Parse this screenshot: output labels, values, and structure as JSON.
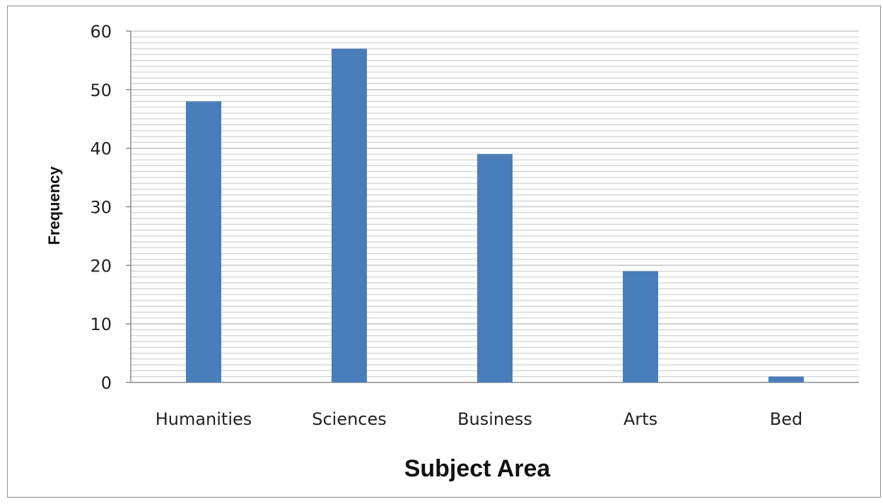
{
  "chart_data": {
    "type": "bar",
    "title": "",
    "xlabel": "Subject Area",
    "ylabel": "Frequency",
    "categories": [
      "Humanities",
      "Sciences",
      "Business",
      "Arts",
      "Bed"
    ],
    "values": [
      48,
      57,
      39,
      19,
      1
    ],
    "ylim": [
      0,
      60
    ],
    "yticks": [
      0,
      10,
      20,
      30,
      40,
      50,
      60
    ],
    "grid": true,
    "legend": "none",
    "bar_color": "#4a7ebb",
    "gridline_color": "#c8c8c8"
  }
}
